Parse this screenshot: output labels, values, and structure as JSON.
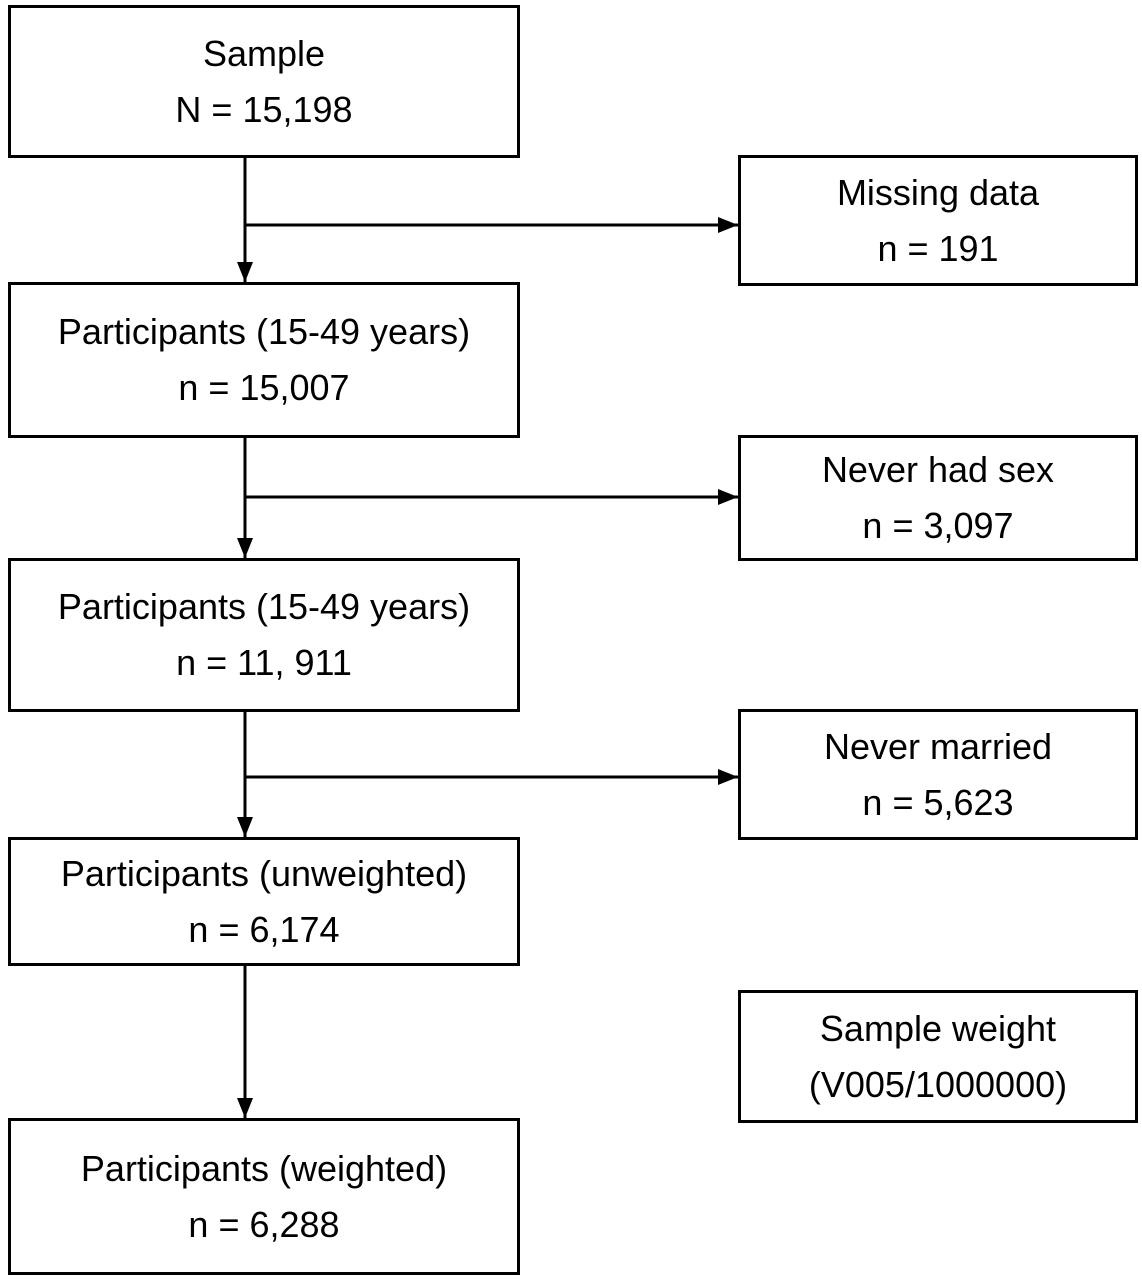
{
  "flow_main": [
    {
      "label": "Sample",
      "count": "N = 15,198"
    },
    {
      "label": "Participants (15-49 years)",
      "count": "n = 15,007"
    },
    {
      "label": "Participants (15-49 years)",
      "count": "n = 11, 911"
    },
    {
      "label": "Participants (unweighted)",
      "count": "n = 6,174"
    },
    {
      "label": "Participants (weighted)",
      "count": "n = 6,288"
    }
  ],
  "flow_side": [
    {
      "label": "Missing data",
      "count": "n = 191"
    },
    {
      "label": "Never had sex",
      "count": "n = 3,097"
    },
    {
      "label": "Never married",
      "count": "n = 5,623"
    },
    {
      "label": "Sample weight",
      "count": "(V005/1000000)"
    }
  ]
}
